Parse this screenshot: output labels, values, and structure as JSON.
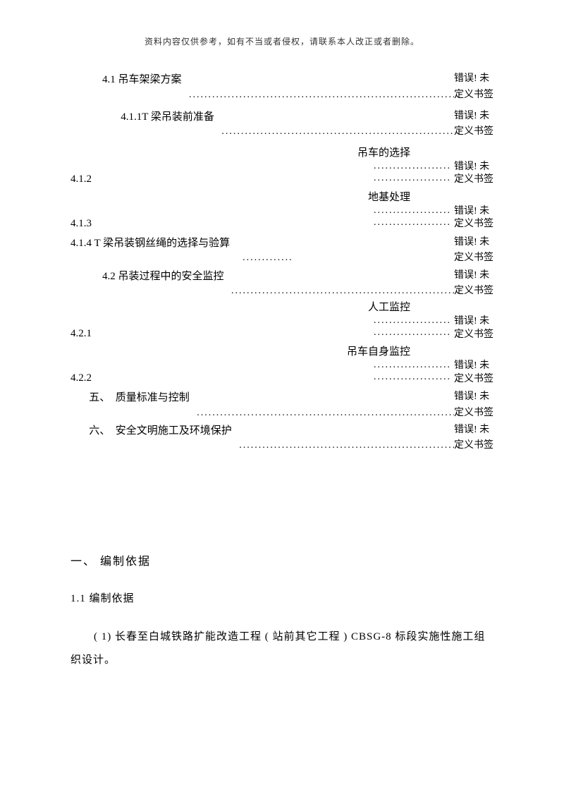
{
  "header_note": "资料内容仅供参考，如有不当或者侵权，请联系本人改正或者删除。",
  "err1": "错误! 未",
  "err2": "定义书签",
  "leader": "..................................................................................",
  "dots_short": "....................",
  "toc": {
    "r1": {
      "left": "            4.1 吊车架梁方案  "
    },
    "r2": {
      "left": "                   4.1.1T 梁吊装前准备  "
    },
    "r3": {
      "top": "吊车的选择",
      "num": "4.1.2"
    },
    "r4": {
      "top": "地基处理",
      "num": "4.1.3"
    },
    "r5": {
      "left": "4.1.4 T 梁吊装钢丝绳的选择与验算    "
    },
    "r6": {
      "left": "            4.2 吊装过程中的安全监控  "
    },
    "r7": {
      "top": "人工监控",
      "num": "4.2.1"
    },
    "r8": {
      "top": "吊车自身监控",
      "num": "4.2.2"
    },
    "r9": {
      "left": "       五、  质量标准与控制  "
    },
    "r10": {
      "left": "       六、  安全文明施工及环境保护  "
    }
  },
  "section1": "一、  编制依据",
  "section1_1": "1.1 编制依据",
  "para1": "( 1) 长春至白城铁路扩能改造工程    ( 站前其它工程  ) CBSG-8 标段实施性施工组织设计。"
}
